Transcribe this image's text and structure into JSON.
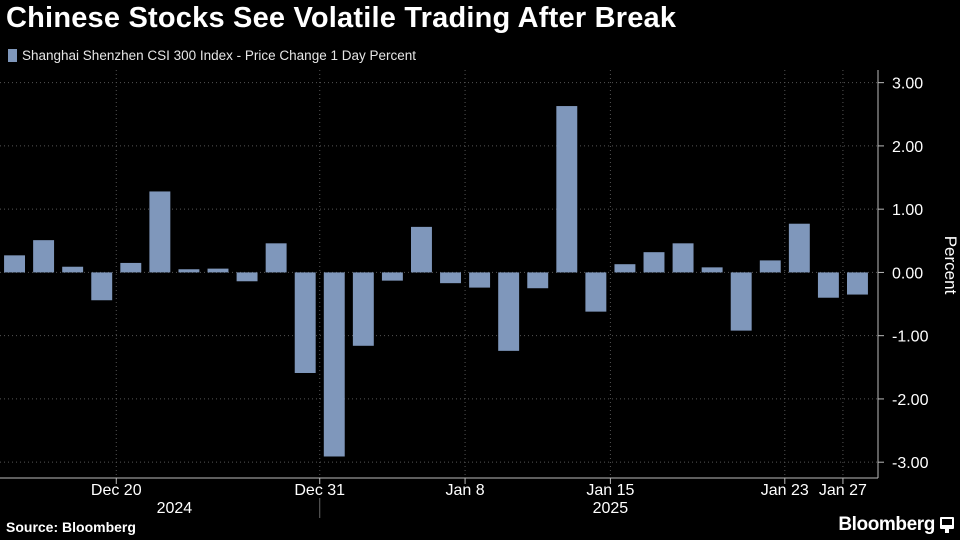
{
  "title": "Chinese Stocks See Volatile Trading After Break",
  "source": "Source: Bloomberg",
  "brand": "Bloomberg",
  "colors": {
    "bar": "#7f97bb",
    "background": "#000000",
    "grid": "#555555",
    "text": "#ffffff"
  },
  "chart_data": {
    "type": "bar",
    "title": "Chinese Stocks See Volatile Trading After Break",
    "legend": [
      "Shanghai Shenzhen CSI 300 Index - Price Change 1 Day Percent"
    ],
    "series": [
      {
        "name": "Shanghai Shenzhen CSI 300 Index - Price Change 1 Day Percent",
        "values": [
          0.27,
          0.51,
          0.09,
          -0.44,
          0.15,
          1.28,
          0.05,
          0.06,
          -0.14,
          0.46,
          -1.59,
          -2.91,
          -1.16,
          -0.13,
          0.72,
          -0.17,
          -0.24,
          -1.24,
          -0.25,
          2.63,
          -0.62,
          0.13,
          0.32,
          0.46,
          0.08,
          -0.92,
          0.19,
          0.77,
          -0.4,
          -0.35
        ]
      }
    ],
    "ylabel": "Percent",
    "xlabel": "",
    "ylim": [
      -3.25,
      3.2
    ],
    "yticks": [
      3.0,
      2.0,
      1.0,
      0.0,
      -1.0,
      -2.0,
      -3.0
    ],
    "ytick_labels": [
      "3.00",
      "2.00",
      "1.00",
      "0.00",
      "-1.00",
      "-2.00",
      "-3.00"
    ],
    "xticks": [
      {
        "label": "Dec 20",
        "index": 3.5
      },
      {
        "label": "Dec 31",
        "index": 10.5
      },
      {
        "label": "Jan 8",
        "index": 15.5
      },
      {
        "label": "Jan 15",
        "index": 20.5
      },
      {
        "label": "Jan 23",
        "index": 26.5
      },
      {
        "label": "Jan 27",
        "index": 28.5
      }
    ],
    "year_labels": [
      {
        "label": "2024",
        "index": 5.5
      },
      {
        "label": "2025",
        "index": 20.5
      }
    ],
    "year_divider_index": 10.5,
    "grid": true,
    "legend_position": "top-left"
  }
}
